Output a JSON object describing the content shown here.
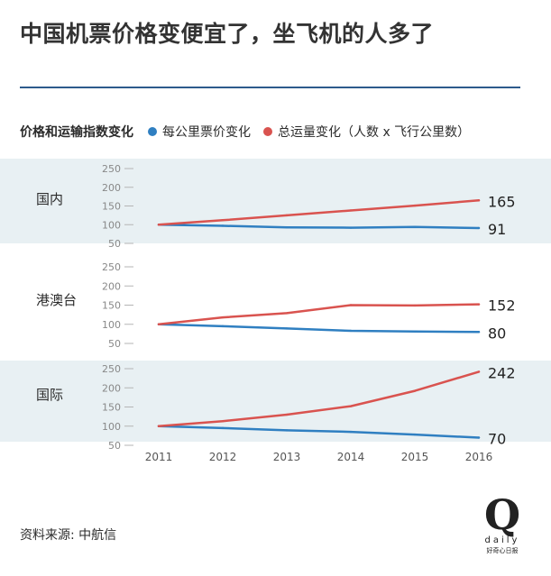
{
  "title": "中国机票价格变便宜了，坐飞机的人多了",
  "legend": {
    "title": "价格和运输指数变化",
    "items": [
      {
        "label": "每公里票价变化",
        "color": "#2f7fc1"
      },
      {
        "label": "总运量变化（人数 x 飞行公里数）",
        "color": "#d9534f"
      }
    ]
  },
  "source": "资料来源: 中航信",
  "logo": {
    "letter": "Q",
    "word": "daily",
    "cn": "好奇心日报"
  },
  "colors": {
    "price": "#2f7fc1",
    "volume": "#d9534f",
    "band": "#e8f0f3",
    "axis": "#9a9a9a"
  },
  "chart_data": [
    {
      "type": "line",
      "panel": "国内",
      "band": true,
      "x": [
        "2011",
        "2012",
        "2013",
        "2014",
        "2015",
        "2016"
      ],
      "yticks": [
        50,
        100,
        150,
        200,
        250
      ],
      "ylim": [
        50,
        250
      ],
      "series": [
        {
          "name": "每公里票价变化",
          "values": [
            100,
            97,
            93,
            92,
            94,
            91
          ],
          "end_label": "91"
        },
        {
          "name": "总运量变化（人数 x 飞行公里数）",
          "values": [
            100,
            112,
            125,
            138,
            151,
            165
          ],
          "end_label": "165"
        }
      ]
    },
    {
      "type": "line",
      "panel": "港澳台",
      "band": false,
      "x": [
        "2011",
        "2012",
        "2013",
        "2014",
        "2015",
        "2016"
      ],
      "yticks": [
        50,
        100,
        150,
        200,
        250
      ],
      "ylim": [
        50,
        250
      ],
      "series": [
        {
          "name": "每公里票价变化",
          "values": [
            100,
            95,
            89,
            83,
            81,
            80
          ],
          "end_label": "80"
        },
        {
          "name": "总运量变化（人数 x 飞行公里数）",
          "values": [
            100,
            118,
            129,
            150,
            149,
            152
          ],
          "end_label": "152"
        }
      ]
    },
    {
      "type": "line",
      "panel": "国际",
      "band": true,
      "x": [
        "2011",
        "2012",
        "2013",
        "2014",
        "2015",
        "2016"
      ],
      "yticks": [
        50,
        100,
        150,
        200,
        250
      ],
      "ylim": [
        50,
        250
      ],
      "series": [
        {
          "name": "每公里票价变化",
          "values": [
            100,
            95,
            89,
            85,
            78,
            70
          ],
          "end_label": "70"
        },
        {
          "name": "总运量变化（人数 x 飞行公里数）",
          "values": [
            100,
            113,
            130,
            152,
            192,
            242
          ],
          "end_label": "242"
        }
      ]
    }
  ]
}
